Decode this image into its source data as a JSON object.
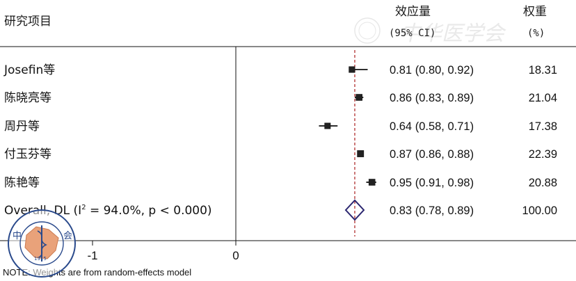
{
  "header": {
    "study_col": "研究项目",
    "effect_col_line1": "效应量",
    "effect_col_line2": "(95% CI)",
    "weight_col_line1": "权重",
    "weight_col_line2": "(%)"
  },
  "watermark": "中华医学会",
  "footnote": "NOTE: Weights are from random-effects model",
  "colors": {
    "line": "#111111",
    "reference_line": "#b03030",
    "diamond": "#2b2670",
    "logo_fill": "#e9a27a",
    "logo_stroke": "#2a4a8c"
  },
  "chart_data": {
    "type": "forest",
    "measure": "effect size",
    "null_value": 0,
    "pooled_reference": 0.83,
    "x_ticks": [
      -1,
      0
    ],
    "studies": [
      {
        "name": "Josefin等",
        "estimate": 0.81,
        "ci_low": 0.8,
        "ci_high": 0.92,
        "ci_text": "0.81 (0.80, 0.92)",
        "weight": 18.31,
        "weight_text": "18.31"
      },
      {
        "name": "陈晓亮等",
        "estimate": 0.86,
        "ci_low": 0.83,
        "ci_high": 0.89,
        "ci_text": "0.86 (0.83, 0.89)",
        "weight": 21.04,
        "weight_text": "21.04"
      },
      {
        "name": "周丹等",
        "estimate": 0.64,
        "ci_low": 0.58,
        "ci_high": 0.71,
        "ci_text": "0.64 (0.58, 0.71)",
        "weight": 17.38,
        "weight_text": "17.38"
      },
      {
        "name": "付玉芬等",
        "estimate": 0.87,
        "ci_low": 0.86,
        "ci_high": 0.88,
        "ci_text": "0.87 (0.86, 0.88)",
        "weight": 22.39,
        "weight_text": "22.39"
      },
      {
        "name": "陈艳等",
        "estimate": 0.95,
        "ci_low": 0.91,
        "ci_high": 0.98,
        "ci_text": "0.95 (0.91, 0.98)",
        "weight": 20.88,
        "weight_text": "20.88"
      }
    ],
    "overall": {
      "label_prefix": "Overall, DL (I",
      "label_sup": "2",
      "label_suffix": " = 94.0%, p < 0.000)",
      "estimate": 0.83,
      "ci_low": 0.78,
      "ci_high": 0.89,
      "ci_text": "0.83 (0.78, 0.89)",
      "weight_text": "100.00"
    }
  },
  "logo": {
    "cn_left": "中",
    "cn_right": "会",
    "arc_text": "CHINESE MEDICAL ASSOCIATION",
    "year": "1915"
  }
}
